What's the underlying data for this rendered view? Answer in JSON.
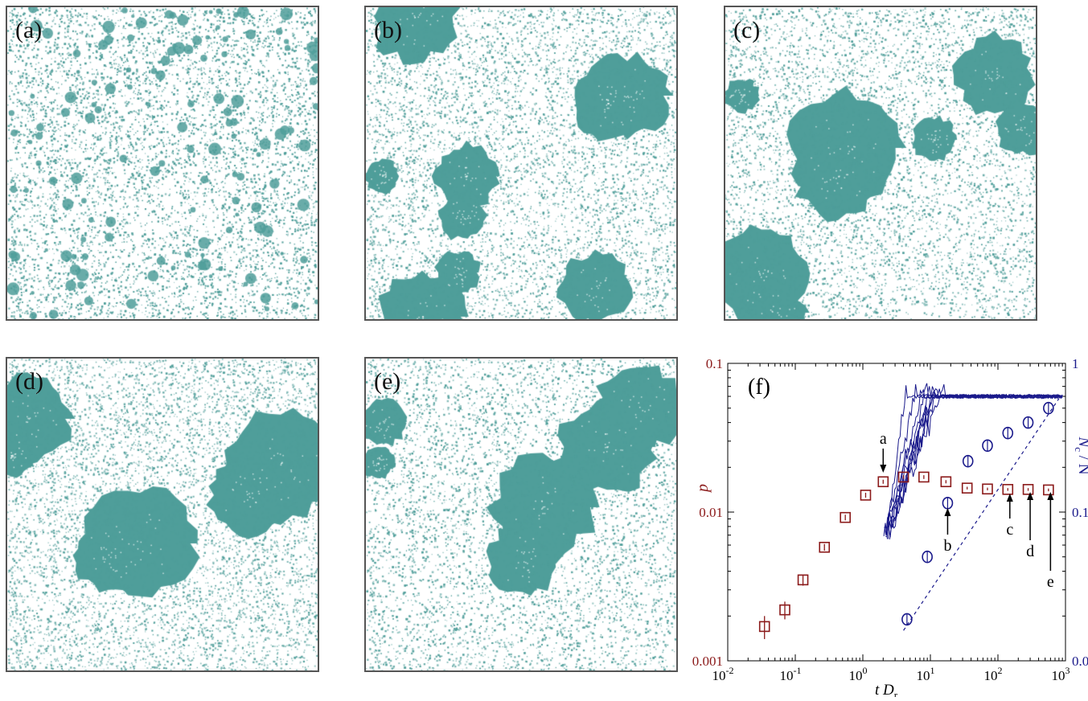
{
  "panels": [
    {
      "label": "(a)"
    },
    {
      "label": "(b)"
    },
    {
      "label": "(c)"
    },
    {
      "label": "(d)"
    },
    {
      "label": "(e)"
    }
  ],
  "colors": {
    "particle": "#4f9e9a",
    "cluster": "#4a9a96",
    "left_axis": "#8b1a1a",
    "right_axis": "#1a1a8b",
    "frame": "#555555"
  },
  "chart_data": {
    "type": "scatter",
    "panel_label": "(f)",
    "xlabel_t": "t",
    "xlabel_D": "D",
    "xlabel_sub": "r",
    "ylabel_left": "p",
    "ylabel_right_N": "N",
    "ylabel_right_sub": "c",
    "ylabel_right_rest": "/ N",
    "x_scale": "log",
    "xlim": [
      0.01,
      1000
    ],
    "y_left_scale": "log",
    "y_left_lim": [
      0.001,
      0.1
    ],
    "y_right_scale": "log",
    "y_right_lim": [
      0.01,
      1
    ],
    "x_ticks": [
      {
        "v": 0.01,
        "base": "10",
        "exp": "-2"
      },
      {
        "v": 0.1,
        "base": "10",
        "exp": "-1"
      },
      {
        "v": 1,
        "base": "10",
        "exp": "0"
      },
      {
        "v": 10,
        "base": "10",
        "exp": "1"
      },
      {
        "v": 100,
        "base": "10",
        "exp": "2"
      },
      {
        "v": 1000,
        "base": "10",
        "exp": "3"
      }
    ],
    "y_left_ticks": [
      {
        "v": 0.001,
        "label": "0.001"
      },
      {
        "v": 0.01,
        "label": "0.01"
      },
      {
        "v": 0.1,
        "label": "0.1"
      }
    ],
    "y_right_ticks": [
      {
        "v": 0.01,
        "label": "0.01"
      },
      {
        "v": 0.1,
        "label": "0.1"
      },
      {
        "v": 1,
        "label": "1"
      }
    ],
    "series": [
      {
        "axis": "left",
        "marker": "square",
        "points": [
          {
            "x": 0.035,
            "y": 0.0017,
            "err": 0.0003
          },
          {
            "x": 0.07,
            "y": 0.0022,
            "err": 0.0003
          },
          {
            "x": 0.13,
            "y": 0.0035,
            "err": 0.0003
          },
          {
            "x": 0.27,
            "y": 0.0058,
            "err": 0.0003
          },
          {
            "x": 0.55,
            "y": 0.0092,
            "err": 0.0004
          },
          {
            "x": 1.1,
            "y": 0.013,
            "err": 0.0005
          },
          {
            "x": 2.0,
            "y": 0.016,
            "err": 0.0005
          },
          {
            "x": 4.0,
            "y": 0.0172,
            "err": 0.0005
          },
          {
            "x": 8.0,
            "y": 0.0172,
            "err": 0.0005
          },
          {
            "x": 17,
            "y": 0.016,
            "err": 0.0004
          },
          {
            "x": 35,
            "y": 0.0145,
            "err": 0.0003
          },
          {
            "x": 70,
            "y": 0.0143,
            "err": 0.0003
          },
          {
            "x": 140,
            "y": 0.0142,
            "err": 0.0003
          },
          {
            "x": 280,
            "y": 0.0142,
            "err": 0.0003
          },
          {
            "x": 560,
            "y": 0.0141,
            "err": 0.0003
          }
        ]
      },
      {
        "axis": "right",
        "marker": "circle",
        "points": [
          {
            "x": 4.5,
            "y": 0.019
          },
          {
            "x": 9.0,
            "y": 0.05
          },
          {
            "x": 18,
            "y": 0.115
          },
          {
            "x": 36,
            "y": 0.22
          },
          {
            "x": 70,
            "y": 0.28
          },
          {
            "x": 140,
            "y": 0.34
          },
          {
            "x": 280,
            "y": 0.4
          },
          {
            "x": 560,
            "y": 0.5
          }
        ],
        "fit_line": [
          {
            "x": 4.0,
            "y": 0.016
          },
          {
            "x": 800,
            "y": 0.58
          }
        ]
      }
    ],
    "annotations": [
      {
        "label": "a",
        "x": 2.0,
        "direction": "down"
      },
      {
        "label": "b",
        "x": 18,
        "direction": "up"
      },
      {
        "label": "c",
        "x": 150,
        "direction": "up"
      },
      {
        "label": "d",
        "x": 300,
        "direction": "up"
      },
      {
        "label": "e",
        "x": 600,
        "direction": "up"
      }
    ]
  }
}
